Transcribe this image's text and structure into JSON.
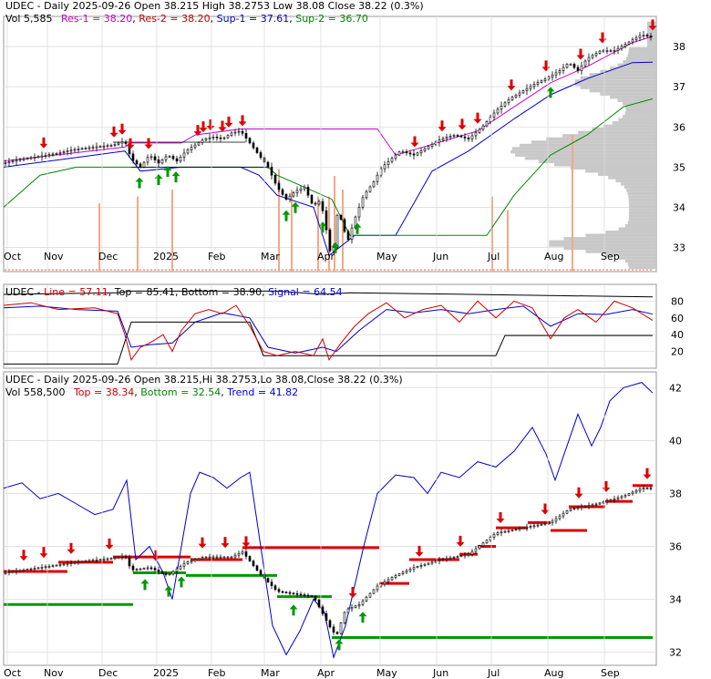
{
  "chart_data": [
    {
      "type": "candlestick",
      "panel": "price",
      "title": "UDEC - Daily 2025-09-26 Open 38.215   High 38.2753   Low 38.08   Close 38.22 (0.3%)",
      "header": {
        "symbol": "UDEC",
        "text_main": " - Daily 2025-09-26 Open 38.215   High 38.2753   Low 38.08   Close 38.22 (0.3%)",
        "vol": "Vol 5,585",
        "res1": "Res-1 = 38.20",
        "res2": "Res-2 = 38.20",
        "sup1": "Sup-1 = 37.61",
        "sup2": "Sup-2 = 36.70"
      },
      "y_ticks": [
        "38",
        "37",
        "36",
        "35",
        "34",
        "33"
      ],
      "ylim": [
        32.4,
        38.75
      ],
      "x_ticks": [
        "Oct",
        "Nov",
        "Dec",
        "2025",
        "Feb",
        "Mar",
        "Apr",
        "May",
        "Jun",
        "Jul",
        "Aug",
        "Sep"
      ],
      "close_path": [
        [
          0,
          35.1
        ],
        [
          20,
          35.2
        ],
        [
          40,
          35.27
        ],
        [
          60,
          35.35
        ],
        [
          80,
          35.45
        ],
        [
          100,
          35.5
        ],
        [
          120,
          35.55
        ],
        [
          133,
          35.65
        ],
        [
          140,
          35.2
        ],
        [
          150,
          35.0
        ],
        [
          160,
          35.3
        ],
        [
          170,
          35.1
        ],
        [
          180,
          35.3
        ],
        [
          190,
          35.15
        ],
        [
          200,
          35.4
        ],
        [
          210,
          35.55
        ],
        [
          220,
          35.7
        ],
        [
          230,
          35.75
        ],
        [
          240,
          35.7
        ],
        [
          250,
          35.85
        ],
        [
          260,
          35.9
        ],
        [
          270,
          35.6
        ],
        [
          280,
          35.3
        ],
        [
          290,
          35.0
        ],
        [
          300,
          34.5
        ],
        [
          310,
          34.2
        ],
        [
          320,
          34.4
        ],
        [
          330,
          34.5
        ],
        [
          340,
          34.0
        ],
        [
          345,
          34.2
        ],
        [
          352,
          33.8
        ],
        [
          357,
          32.9
        ],
        [
          362,
          33.0
        ],
        [
          367,
          34.0
        ],
        [
          372,
          33.5
        ],
        [
          378,
          33.2
        ],
        [
          385,
          33.7
        ],
        [
          395,
          34.3
        ],
        [
          405,
          34.6
        ],
        [
          415,
          35.0
        ],
        [
          425,
          35.2
        ],
        [
          435,
          35.4
        ],
        [
          450,
          35.3
        ],
        [
          465,
          35.5
        ],
        [
          480,
          35.7
        ],
        [
          495,
          35.8
        ],
        [
          510,
          35.7
        ],
        [
          525,
          36.0
        ],
        [
          540,
          36.4
        ],
        [
          555,
          36.7
        ],
        [
          570,
          36.9
        ],
        [
          585,
          37.1
        ],
        [
          595,
          37.2
        ],
        [
          610,
          37.4
        ],
        [
          620,
          37.6
        ],
        [
          630,
          37.4
        ],
        [
          640,
          37.7
        ],
        [
          655,
          37.9
        ],
        [
          670,
          37.9
        ],
        [
          685,
          38.1
        ],
        [
          700,
          38.3
        ],
        [
          712,
          38.22
        ]
      ],
      "res_line": [
        [
          0,
          35.15
        ],
        [
          133,
          35.5
        ],
        [
          140,
          35.6
        ],
        [
          195,
          35.6
        ],
        [
          210,
          35.8
        ],
        [
          260,
          35.95
        ],
        [
          410,
          35.95
        ],
        [
          430,
          35.3
        ],
        [
          460,
          35.5
        ],
        [
          520,
          35.9
        ],
        [
          560,
          36.5
        ],
        [
          600,
          37.1
        ],
        [
          640,
          37.5
        ],
        [
          690,
          38.1
        ],
        [
          712,
          38.25
        ]
      ],
      "sup1_line": [
        [
          0,
          35.0
        ],
        [
          100,
          35.3
        ],
        [
          133,
          35.4
        ],
        [
          150,
          34.9
        ],
        [
          195,
          35.0
        ],
        [
          260,
          35.0
        ],
        [
          280,
          34.8
        ],
        [
          300,
          34.3
        ],
        [
          340,
          34.0
        ],
        [
          357,
          32.8
        ],
        [
          385,
          33.3
        ],
        [
          430,
          33.3
        ],
        [
          470,
          34.9
        ],
        [
          510,
          35.4
        ],
        [
          560,
          36.2
        ],
        [
          600,
          36.8
        ],
        [
          640,
          37.2
        ],
        [
          690,
          37.6
        ],
        [
          712,
          37.61
        ]
      ],
      "sup2_line": [
        [
          0,
          34.0
        ],
        [
          40,
          34.8
        ],
        [
          80,
          35.0
        ],
        [
          195,
          35.0
        ],
        [
          290,
          35.0
        ],
        [
          300,
          34.8
        ],
        [
          360,
          34.2
        ],
        [
          380,
          33.3
        ],
        [
          530,
          33.3
        ],
        [
          560,
          34.3
        ],
        [
          600,
          35.3
        ],
        [
          640,
          35.8
        ],
        [
          680,
          36.5
        ],
        [
          712,
          36.7
        ]
      ],
      "sell_arrows": [
        44,
        121,
        130,
        139,
        159,
        213,
        219,
        227,
        240,
        247,
        262,
        451,
        481,
        503,
        520,
        557,
        595,
        633,
        657,
        712
      ],
      "buy_arrows": [
        149,
        170,
        180,
        189,
        310,
        320,
        350,
        364,
        388,
        600
      ],
      "volume_bars": [
        [
          105,
          0.5
        ],
        [
          147,
          0.55
        ],
        [
          185,
          0.6
        ],
        [
          302,
          0.75
        ],
        [
          316,
          0.6
        ],
        [
          345,
          0.55
        ],
        [
          357,
          0.55
        ],
        [
          363,
          0.7
        ],
        [
          372,
          0.6
        ],
        [
          536,
          0.55
        ],
        [
          553,
          0.45
        ],
        [
          624,
          1.0
        ]
      ],
      "volume_profile_note": "horizontal volume-at-price histogram on right side"
    },
    {
      "type": "line",
      "panel": "oscillator",
      "header": {
        "symbol": "UDEC",
        "line": "Line = 57.11",
        "top": "Top = 85.41",
        "bottom": "Bottom = 38.90",
        "signal": "Signal = 64.54"
      },
      "y_ticks": [
        "80",
        "60",
        "40",
        "20"
      ],
      "ylim": [
        0,
        100
      ],
      "line_series": [
        [
          0,
          75
        ],
        [
          30,
          78
        ],
        [
          60,
          70
        ],
        [
          100,
          72
        ],
        [
          125,
          65
        ],
        [
          133,
          40
        ],
        [
          140,
          10
        ],
        [
          150,
          25
        ],
        [
          160,
          30
        ],
        [
          175,
          40
        ],
        [
          185,
          20
        ],
        [
          195,
          45
        ],
        [
          210,
          65
        ],
        [
          225,
          70
        ],
        [
          240,
          65
        ],
        [
          255,
          75
        ],
        [
          270,
          50
        ],
        [
          285,
          20
        ],
        [
          300,
          15
        ],
        [
          320,
          20
        ],
        [
          340,
          15
        ],
        [
          350,
          35
        ],
        [
          357,
          10
        ],
        [
          370,
          30
        ],
        [
          385,
          50
        ],
        [
          400,
          65
        ],
        [
          420,
          78
        ],
        [
          440,
          60
        ],
        [
          460,
          70
        ],
        [
          480,
          75
        ],
        [
          500,
          55
        ],
        [
          520,
          80
        ],
        [
          540,
          60
        ],
        [
          560,
          80
        ],
        [
          580,
          72
        ],
        [
          600,
          35
        ],
        [
          615,
          60
        ],
        [
          630,
          70
        ],
        [
          650,
          55
        ],
        [
          670,
          80
        ],
        [
          690,
          72
        ],
        [
          712,
          57
        ]
      ],
      "signal_series": [
        [
          0,
          72
        ],
        [
          40,
          74
        ],
        [
          80,
          70
        ],
        [
          125,
          68
        ],
        [
          140,
          25
        ],
        [
          160,
          28
        ],
        [
          185,
          30
        ],
        [
          210,
          55
        ],
        [
          240,
          66
        ],
        [
          270,
          60
        ],
        [
          290,
          25
        ],
        [
          320,
          18
        ],
        [
          350,
          25
        ],
        [
          365,
          20
        ],
        [
          390,
          45
        ],
        [
          420,
          70
        ],
        [
          450,
          66
        ],
        [
          480,
          70
        ],
        [
          510,
          65
        ],
        [
          540,
          70
        ],
        [
          570,
          74
        ],
        [
          600,
          50
        ],
        [
          630,
          65
        ],
        [
          660,
          64
        ],
        [
          690,
          70
        ],
        [
          712,
          64.5
        ]
      ],
      "top_band": [
        [
          0,
          88
        ],
        [
          125,
          90
        ],
        [
          140,
          92
        ],
        [
          300,
          92
        ],
        [
          350,
          88
        ],
        [
          380,
          90
        ],
        [
          712,
          85
        ]
      ],
      "bottom_band": [
        [
          0,
          5
        ],
        [
          125,
          5
        ],
        [
          140,
          55
        ],
        [
          270,
          55
        ],
        [
          285,
          15
        ],
        [
          540,
          15
        ],
        [
          550,
          39
        ],
        [
          712,
          39
        ]
      ]
    },
    {
      "type": "candlestick",
      "panel": "trend",
      "header": {
        "symbol": "UDEC",
        "text_main": " - Daily 2025-09-26 Open 38.215,Hi 38.2753,Lo 38.08,Close 38.22 (0.3%)",
        "vol": "Vol 558,500",
        "top": "Top = 38.34",
        "bottom": "Bottom = 32.54",
        "trend": "Trend = 41.82"
      },
      "y_ticks": [
        "42",
        "40",
        "38",
        "36",
        "34",
        "32"
      ],
      "ylim": [
        31.5,
        42.6
      ],
      "x_ticks": [
        "Oct",
        "Nov",
        "Dec",
        "2025",
        "Feb",
        "Mar",
        "Apr",
        "May",
        "Jun",
        "Jul",
        "Aug",
        "Sep"
      ],
      "trend_line": [
        [
          0,
          38.2
        ],
        [
          20,
          38.4
        ],
        [
          40,
          37.8
        ],
        [
          60,
          38.0
        ],
        [
          80,
          37.6
        ],
        [
          100,
          37.2
        ],
        [
          120,
          37.4
        ],
        [
          135,
          38.5
        ],
        [
          145,
          35.5
        ],
        [
          160,
          36.0
        ],
        [
          175,
          35.0
        ],
        [
          185,
          34.0
        ],
        [
          195,
          36.0
        ],
        [
          205,
          38.0
        ],
        [
          215,
          38.8
        ],
        [
          230,
          38.6
        ],
        [
          245,
          38.2
        ],
        [
          260,
          38.6
        ],
        [
          270,
          38.8
        ],
        [
          282,
          36.0
        ],
        [
          295,
          33.0
        ],
        [
          310,
          31.9
        ],
        [
          325,
          32.8
        ],
        [
          340,
          34.0
        ],
        [
          352,
          33.5
        ],
        [
          362,
          31.8
        ],
        [
          375,
          33.0
        ],
        [
          395,
          36.0
        ],
        [
          410,
          38.0
        ],
        [
          430,
          38.7
        ],
        [
          450,
          38.6
        ],
        [
          465,
          38.0
        ],
        [
          480,
          38.8
        ],
        [
          500,
          38.6
        ],
        [
          520,
          39.2
        ],
        [
          540,
          39.0
        ],
        [
          560,
          39.6
        ],
        [
          580,
          40.5
        ],
        [
          595,
          39.5
        ],
        [
          605,
          38.5
        ],
        [
          615,
          39.5
        ],
        [
          630,
          41.0
        ],
        [
          645,
          39.8
        ],
        [
          655,
          40.5
        ],
        [
          665,
          41.5
        ],
        [
          680,
          42.0
        ],
        [
          700,
          42.2
        ],
        [
          712,
          41.8
        ]
      ],
      "red_levels": [
        [
          0,
          70,
          35.05
        ],
        [
          60,
          120,
          35.4
        ],
        [
          120,
          205,
          35.6
        ],
        [
          205,
          262,
          35.5
        ],
        [
          262,
          412,
          35.95
        ],
        [
          412,
          445,
          34.6
        ],
        [
          445,
          500,
          35.5
        ],
        [
          500,
          520,
          35.7
        ],
        [
          520,
          540,
          36.0
        ],
        [
          540,
          575,
          36.7
        ],
        [
          575,
          600,
          36.9
        ],
        [
          600,
          640,
          36.6
        ],
        [
          620,
          660,
          37.5
        ],
        [
          660,
          690,
          37.7
        ],
        [
          690,
          712,
          38.3
        ]
      ],
      "green_levels": [
        [
          0,
          142,
          33.8
        ],
        [
          142,
          200,
          35.0
        ],
        [
          200,
          300,
          34.9
        ],
        [
          300,
          360,
          34.1
        ],
        [
          360,
          712,
          32.55
        ]
      ],
      "close_path": [
        [
          0,
          35.0
        ],
        [
          30,
          35.15
        ],
        [
          60,
          35.3
        ],
        [
          90,
          35.45
        ],
        [
          120,
          35.55
        ],
        [
          133,
          35.65
        ],
        [
          140,
          35.1
        ],
        [
          160,
          35.2
        ],
        [
          180,
          34.9
        ],
        [
          200,
          35.4
        ],
        [
          220,
          35.6
        ],
        [
          250,
          35.6
        ],
        [
          262,
          35.8
        ],
        [
          280,
          35.0
        ],
        [
          300,
          34.3
        ],
        [
          320,
          34.2
        ],
        [
          340,
          34.1
        ],
        [
          357,
          33.0
        ],
        [
          365,
          32.6
        ],
        [
          375,
          33.6
        ],
        [
          390,
          33.8
        ],
        [
          410,
          34.5
        ],
        [
          430,
          34.9
        ],
        [
          450,
          35.2
        ],
        [
          480,
          35.5
        ],
        [
          510,
          35.7
        ],
        [
          540,
          36.5
        ],
        [
          570,
          36.7
        ],
        [
          600,
          36.9
        ],
        [
          620,
          37.4
        ],
        [
          650,
          37.6
        ],
        [
          680,
          37.9
        ],
        [
          700,
          38.2
        ],
        [
          712,
          38.2
        ]
      ],
      "sell_arrows": [
        22,
        44,
        74,
        116,
        167,
        218,
        243,
        266,
        383,
        456,
        501,
        545,
        594,
        631,
        661,
        706
      ],
      "buy_arrows": [
        155,
        181,
        195,
        318,
        368,
        394
      ]
    }
  ]
}
